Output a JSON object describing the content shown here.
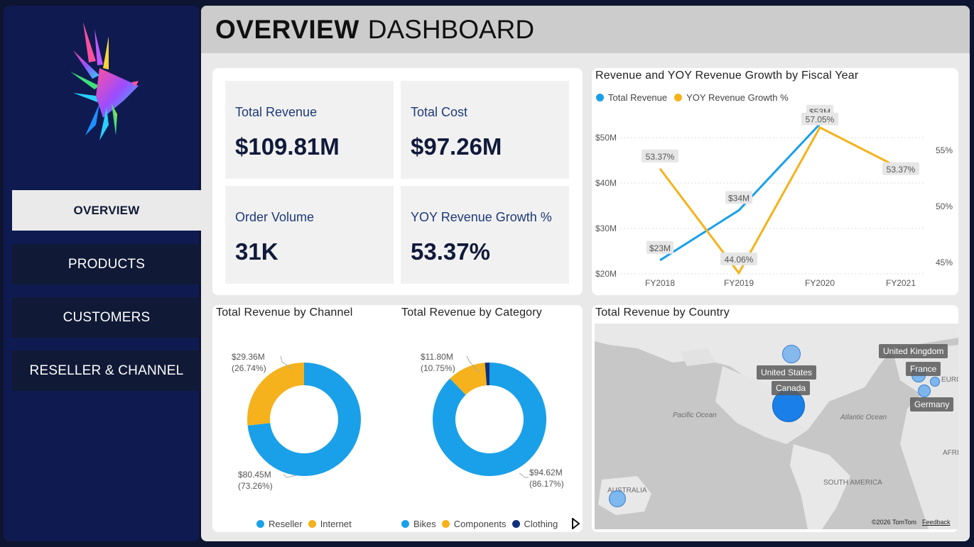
{
  "nav": {
    "items": [
      {
        "label": "OVERVIEW",
        "active": true
      },
      {
        "label": "PRODUCTS",
        "active": false
      },
      {
        "label": "CUSTOMERS",
        "active": false
      },
      {
        "label": "RESELLER & CHANNEL",
        "active": false
      }
    ]
  },
  "header": {
    "title_bold": "OVERVIEW",
    "title_rest": "DASHBOARD"
  },
  "kpis": [
    {
      "label": "Total Revenue",
      "value": "$109.81M"
    },
    {
      "label": "Total Cost",
      "value": "$97.26M"
    },
    {
      "label": "Order Volume",
      "value": "31K"
    },
    {
      "label": "YOY Revenue Growth %",
      "value": "53.37%"
    }
  ],
  "colors": {
    "blue": "#1aa0e8",
    "orange": "#f5b21c",
    "navy": "#12307a"
  },
  "line_chart": {
    "title": "Revenue and YOY Revenue Growth by Fiscal Year",
    "legend": [
      "Total Revenue",
      "YOY Revenue Growth %"
    ],
    "y_left_ticks": [
      "$20M",
      "$30M",
      "$40M",
      "$50M"
    ],
    "y_right_ticks": [
      "45%",
      "50%",
      "55%"
    ],
    "revenue_labels": [
      "$23M",
      "$34M",
      "$53M"
    ],
    "growth_labels": [
      "53.37%",
      "44.06%",
      "57.05%",
      "53.37%"
    ]
  },
  "channel_chart": {
    "title": "Total Revenue by Channel",
    "legend": [
      "Reseller",
      "Internet"
    ],
    "labels": [
      {
        "value": "$80.45M",
        "pct": "(73.26%)"
      },
      {
        "value": "$29.36M",
        "pct": "(26.74%)"
      }
    ]
  },
  "category_chart": {
    "title": "Total Revenue by Category",
    "legend": [
      "Bikes",
      "Components",
      "Clothing"
    ],
    "labels": [
      {
        "value": "$94.62M",
        "pct": "(86.17%)"
      },
      {
        "value": "$11.80M",
        "pct": "(10.75%)"
      }
    ]
  },
  "map": {
    "title": "Total Revenue by Country",
    "countries": [
      "United States",
      "Canada",
      "United Kingdom",
      "France",
      "Germany"
    ],
    "regions": [
      "Pacific Ocean",
      "Atlantic Ocean",
      "SOUTH AMERICA",
      "AUSTRALIA",
      "EURO",
      "AFRI"
    ],
    "attribution": "©2026 TomTom",
    "feedback": "Feedback"
  },
  "chart_data": [
    {
      "type": "line",
      "title": "Revenue and YOY Revenue Growth by Fiscal Year",
      "x": [
        "FY2018",
        "FY2019",
        "FY2020",
        "FY2021"
      ],
      "series": [
        {
          "name": "Total Revenue",
          "axis": "left",
          "values": [
            23,
            34,
            53,
            null
          ]
        },
        {
          "name": "YOY Revenue Growth %",
          "axis": "right",
          "values": [
            53.37,
            44.06,
            57.05,
            53.37
          ]
        }
      ],
      "ylim_left": [
        20,
        55
      ],
      "ylim_right": [
        44,
        58
      ],
      "legend": "top-left"
    },
    {
      "type": "pie",
      "title": "Total Revenue by Channel",
      "categories": [
        "Reseller",
        "Internet"
      ],
      "values": [
        80.45,
        29.36
      ],
      "legend": "bottom"
    },
    {
      "type": "pie",
      "title": "Total Revenue by Category",
      "categories": [
        "Bikes",
        "Components",
        "Clothing"
      ],
      "values": [
        94.62,
        11.8,
        1.39
      ],
      "legend": "bottom"
    }
  ]
}
